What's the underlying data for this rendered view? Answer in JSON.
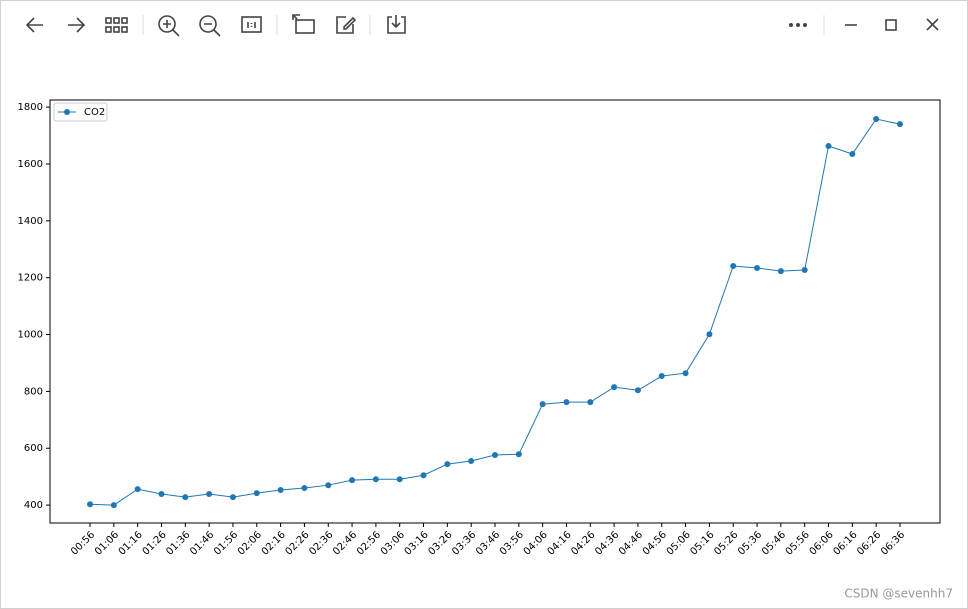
{
  "chart_data": {
    "type": "line",
    "categories": [
      "00:56",
      "01:06",
      "01:16",
      "01:26",
      "01:36",
      "01:46",
      "01:56",
      "02:06",
      "02:16",
      "02:26",
      "02:36",
      "02:46",
      "02:56",
      "03:06",
      "03:16",
      "03:26",
      "03:36",
      "03:46",
      "03:56",
      "04:06",
      "04:16",
      "04:26",
      "04:36",
      "04:46",
      "04:56",
      "05:06",
      "05:16",
      "05:26",
      "05:36",
      "05:46",
      "05:56",
      "06:06",
      "06:16",
      "06:26",
      "06:36"
    ],
    "series": [
      {
        "name": "CO2",
        "color": "#1f77b4",
        "values": [
          403,
          400,
          456,
          439,
          428,
          439,
          428,
          442,
          453,
          460,
          470,
          488,
          491,
          491,
          505,
          544,
          555,
          576,
          579,
          755,
          762,
          762,
          815,
          804,
          854,
          864,
          1001,
          1241,
          1234,
          1223,
          1227,
          1663,
          1635,
          1758,
          1740
        ]
      }
    ],
    "ylim": [
      337,
      1825
    ],
    "yticks": [
      400,
      600,
      800,
      1000,
      1200,
      1400,
      1600,
      1800
    ],
    "legend": "upper left",
    "grid": false
  },
  "watermark": "CSDN @sevenhh7"
}
